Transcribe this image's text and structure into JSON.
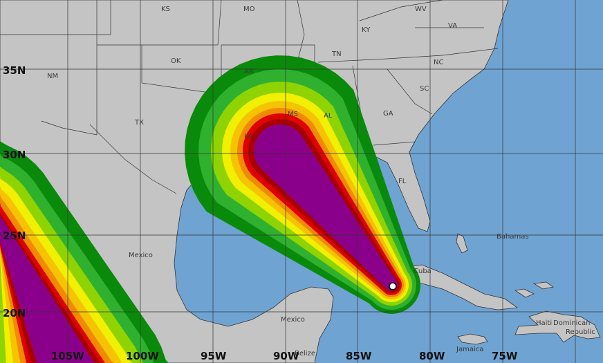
{
  "colors": {
    "ocean": "#6fa3d2",
    "land": "#c4c4c4",
    "border": "#555555",
    "probability_bands": [
      "#0a8a0a",
      "#2fb12f",
      "#8fd400",
      "#f0f000",
      "#f5c300",
      "#f08a00",
      "#e00000",
      "#a80000",
      "#8b008b"
    ]
  },
  "lat_labels": [
    "35N",
    "30N",
    "25N",
    "20N"
  ],
  "lon_labels": [
    "105W",
    "100W",
    "95W",
    "90W",
    "85W",
    "80W",
    "75W"
  ],
  "place_labels": {
    "ks": "KS",
    "mo": "MO",
    "wv": "WV",
    "ky": "KY",
    "va": "VA",
    "nm": "NM",
    "ok": "OK",
    "tn": "TN",
    "nc": "NC",
    "ar": "AR",
    "sc": "SC",
    "tx": "TX",
    "ms": "MS",
    "al": "AL",
    "ga": "GA",
    "la": "LA",
    "fl": "FL",
    "bahamas": "Bahamas",
    "mexico_north": "Mexico",
    "cuba": "Cuba",
    "mexico_south": "Mexico",
    "haiti": "Haiti",
    "dominican": "Dominican",
    "republic": "Republic",
    "jamaica": "Jamaica",
    "belize": "Belize"
  },
  "storm_center_icon": "white-dot"
}
